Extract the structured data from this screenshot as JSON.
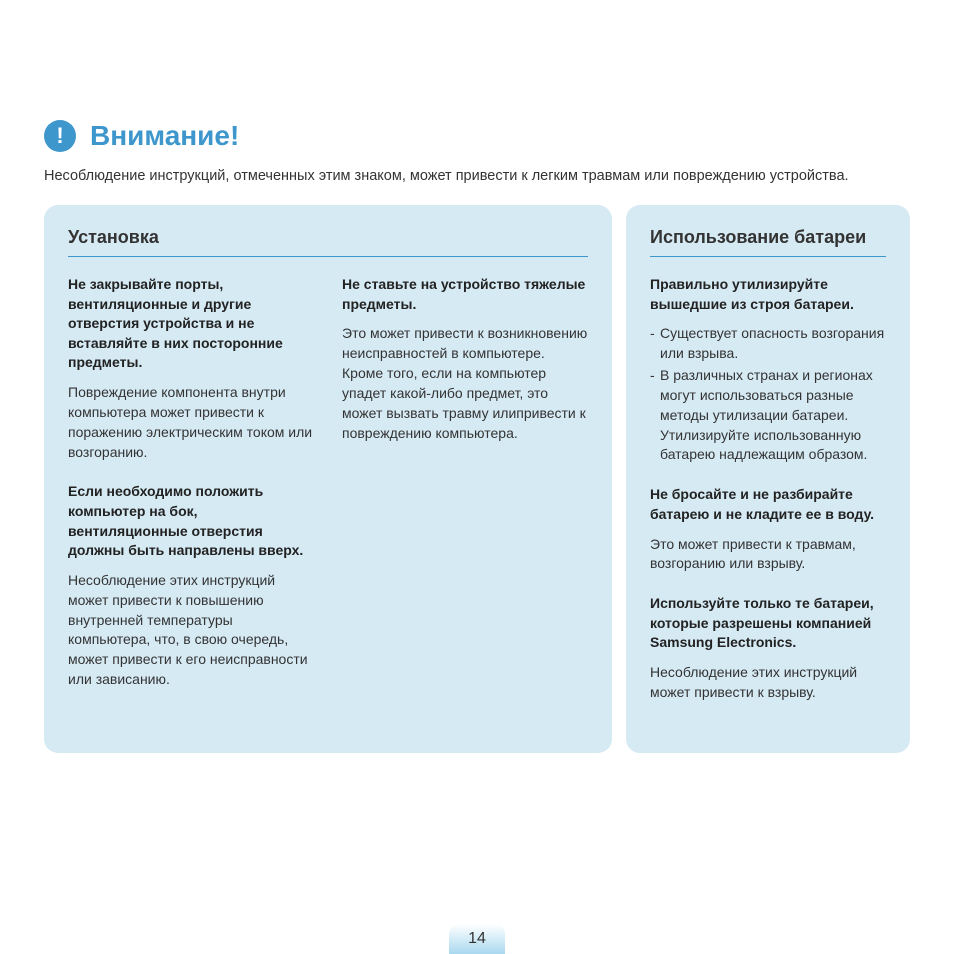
{
  "colors": {
    "title": "#3d96cc",
    "iconBg": "#3d96cc",
    "panelBg": "#d6eaf4",
    "panelTitleBorder": "#3d96cc",
    "pageNumBg": "#a9d8ef"
  },
  "heading": {
    "iconGlyph": "!",
    "title": "Внимание!"
  },
  "intro": "Несоблюдение инструкций, отмеченных этим знаком, может привести к легким травмам или повреждению устройства.",
  "leftPanel": {
    "title": "Установка",
    "col1": [
      {
        "title": "Не закрывайте порты, вентиляционные и другие отверстия устройства и не вставляйте в них посторонние предметы.",
        "body": "Повреждение компонента внутри компьютера может привести к поражению электрическим током или возгоранию."
      },
      {
        "title": "Если необходимо положить компьютер на бок, вентиляционные отверстия должны быть направлены вверх.",
        "body": "Несоблюдение этих инструкций может привести к повышению внутренней температуры компьютера, что, в свою очередь, может привести к его неисправности или зависанию."
      }
    ],
    "col2": [
      {
        "title": "Не ставьте на устройство тяжелые предметы.",
        "body": "Это может привести к возникновению неисправностей в компьютере. Кроме того, если на компьютер упадет какой-либо предмет, это может вызвать травму илипривести к повреждению компьютера."
      }
    ]
  },
  "rightPanel": {
    "title": "Использование батареи",
    "blocks": [
      {
        "title": "Правильно утилизируйте вышедшие из строя батареи.",
        "bullets": [
          "Существует опасность возгорания или взрыва.",
          "В различных странах и регионах могут использоваться разные методы утилизации батареи. Утилизируйте использованную батарею надлежащим образом."
        ]
      },
      {
        "title": "Не бросайте и не разбирайте батарею и не кладите ее в воду.",
        "body": "Это может привести к травмам, возгоранию или взрыву."
      },
      {
        "title": "Используйте только те батареи, которые разрешены компанией Samsung Electronics.",
        "body": "Несоблюдение этих инструкций может привести к взрыву."
      }
    ]
  },
  "pageNumber": "14"
}
